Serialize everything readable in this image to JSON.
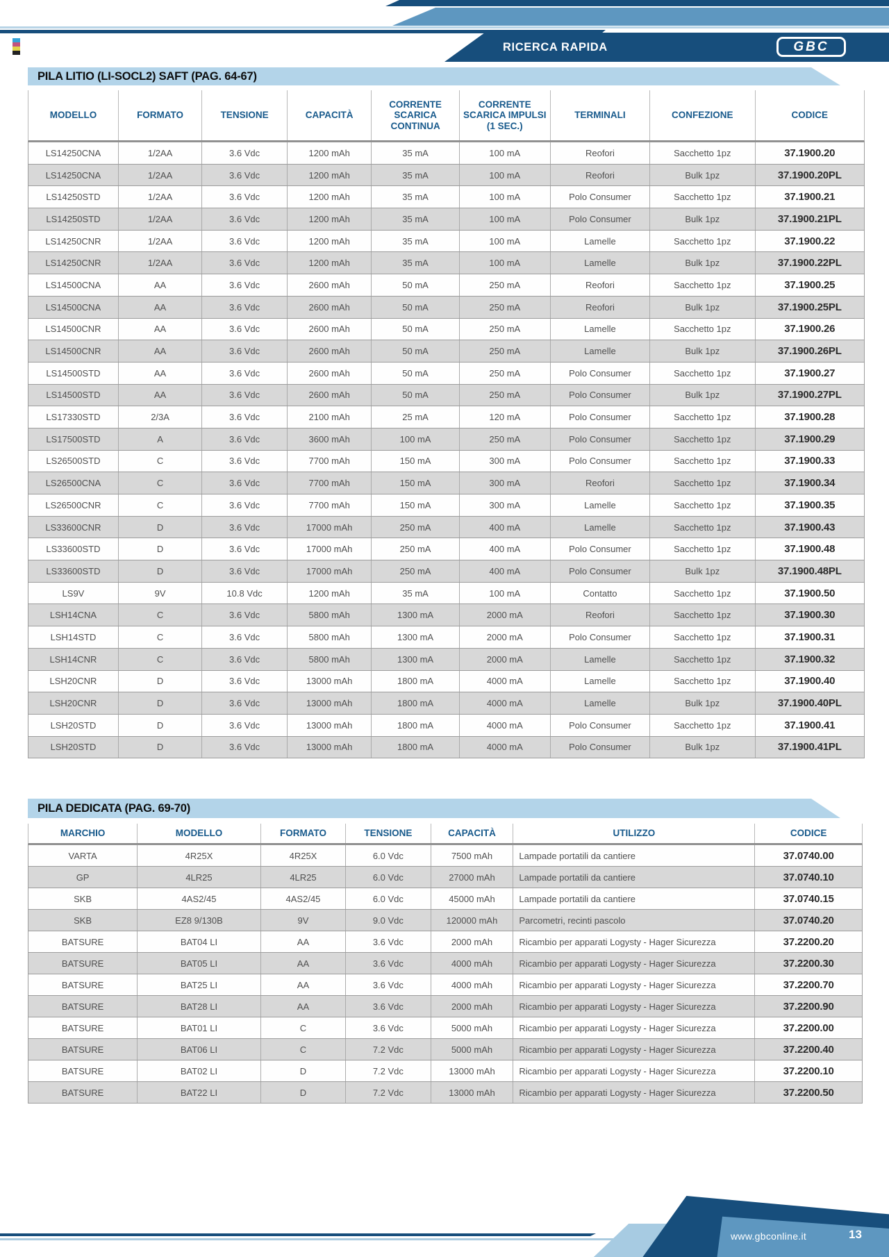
{
  "header": {
    "quick_search_label": "RICERCA RAPIDA",
    "logo_text": "GBC"
  },
  "table1": {
    "title": "PILA LITIO (LI-SOCL2) SAFT (PAG. 64-67)",
    "columns": [
      "MODELLO",
      "FORMATO",
      "TENSIONE",
      "CAPACITÀ",
      "CORRENTE SCARICA CONTINUA",
      "CORRENTE SCARICA IMPULSI (1 SEC.)",
      "TERMINALI",
      "CONFEZIONE",
      "CODICE"
    ],
    "rows": [
      [
        "LS14250CNA",
        "1/2AA",
        "3.6 Vdc",
        "1200 mAh",
        "35 mA",
        "100 mA",
        "Reofori",
        "Sacchetto 1pz",
        "37.1900.20"
      ],
      [
        "LS14250CNA",
        "1/2AA",
        "3.6 Vdc",
        "1200 mAh",
        "35 mA",
        "100 mA",
        "Reofori",
        "Bulk 1pz",
        "37.1900.20PL"
      ],
      [
        "LS14250STD",
        "1/2AA",
        "3.6 Vdc",
        "1200 mAh",
        "35 mA",
        "100 mA",
        "Polo Consumer",
        "Sacchetto 1pz",
        "37.1900.21"
      ],
      [
        "LS14250STD",
        "1/2AA",
        "3.6 Vdc",
        "1200 mAh",
        "35 mA",
        "100 mA",
        "Polo Consumer",
        "Bulk 1pz",
        "37.1900.21PL"
      ],
      [
        "LS14250CNR",
        "1/2AA",
        "3.6 Vdc",
        "1200 mAh",
        "35 mA",
        "100 mA",
        "Lamelle",
        "Sacchetto 1pz",
        "37.1900.22"
      ],
      [
        "LS14250CNR",
        "1/2AA",
        "3.6 Vdc",
        "1200 mAh",
        "35 mA",
        "100 mA",
        "Lamelle",
        "Bulk 1pz",
        "37.1900.22PL"
      ],
      [
        "LS14500CNA",
        "AA",
        "3.6 Vdc",
        "2600 mAh",
        "50 mA",
        "250 mA",
        "Reofori",
        "Sacchetto 1pz",
        "37.1900.25"
      ],
      [
        "LS14500CNA",
        "AA",
        "3.6 Vdc",
        "2600 mAh",
        "50 mA",
        "250 mA",
        "Reofori",
        "Bulk 1pz",
        "37.1900.25PL"
      ],
      [
        "LS14500CNR",
        "AA",
        "3.6 Vdc",
        "2600 mAh",
        "50 mA",
        "250 mA",
        "Lamelle",
        "Sacchetto 1pz",
        "37.1900.26"
      ],
      [
        "LS14500CNR",
        "AA",
        "3.6 Vdc",
        "2600 mAh",
        "50 mA",
        "250 mA",
        "Lamelle",
        "Bulk 1pz",
        "37.1900.26PL"
      ],
      [
        "LS14500STD",
        "AA",
        "3.6 Vdc",
        "2600 mAh",
        "50 mA",
        "250 mA",
        "Polo Consumer",
        "Sacchetto 1pz",
        "37.1900.27"
      ],
      [
        "LS14500STD",
        "AA",
        "3.6 Vdc",
        "2600 mAh",
        "50 mA",
        "250 mA",
        "Polo Consumer",
        "Bulk 1pz",
        "37.1900.27PL"
      ],
      [
        "LS17330STD",
        "2/3A",
        "3.6 Vdc",
        "2100 mAh",
        "25 mA",
        "120 mA",
        "Polo Consumer",
        "Sacchetto 1pz",
        "37.1900.28"
      ],
      [
        "LS17500STD",
        "A",
        "3.6 Vdc",
        "3600 mAh",
        "100 mA",
        "250 mA",
        "Polo Consumer",
        "Sacchetto 1pz",
        "37.1900.29"
      ],
      [
        "LS26500STD",
        "C",
        "3.6 Vdc",
        "7700 mAh",
        "150 mA",
        "300 mA",
        "Polo Consumer",
        "Sacchetto 1pz",
        "37.1900.33"
      ],
      [
        "LS26500CNA",
        "C",
        "3.6 Vdc",
        "7700 mAh",
        "150 mA",
        "300 mA",
        "Reofori",
        "Sacchetto 1pz",
        "37.1900.34"
      ],
      [
        "LS26500CNR",
        "C",
        "3.6 Vdc",
        "7700 mAh",
        "150 mA",
        "300 mA",
        "Lamelle",
        "Sacchetto 1pz",
        "37.1900.35"
      ],
      [
        "LS33600CNR",
        "D",
        "3.6 Vdc",
        "17000 mAh",
        "250 mA",
        "400 mA",
        "Lamelle",
        "Sacchetto 1pz",
        "37.1900.43"
      ],
      [
        "LS33600STD",
        "D",
        "3.6 Vdc",
        "17000 mAh",
        "250 mA",
        "400 mA",
        "Polo Consumer",
        "Sacchetto 1pz",
        "37.1900.48"
      ],
      [
        "LS33600STD",
        "D",
        "3.6 Vdc",
        "17000 mAh",
        "250 mA",
        "400 mA",
        "Polo Consumer",
        "Bulk 1pz",
        "37.1900.48PL"
      ],
      [
        "LS9V",
        "9V",
        "10.8 Vdc",
        "1200 mAh",
        "35 mA",
        "100 mA",
        "Contatto",
        "Sacchetto 1pz",
        "37.1900.50"
      ],
      [
        "LSH14CNA",
        "C",
        "3.6 Vdc",
        "5800 mAh",
        "1300 mA",
        "2000 mA",
        "Reofori",
        "Sacchetto 1pz",
        "37.1900.30"
      ],
      [
        "LSH14STD",
        "C",
        "3.6 Vdc",
        "5800 mAh",
        "1300 mA",
        "2000 mA",
        "Polo Consumer",
        "Sacchetto 1pz",
        "37.1900.31"
      ],
      [
        "LSH14CNR",
        "C",
        "3.6 Vdc",
        "5800 mAh",
        "1300 mA",
        "2000 mA",
        "Lamelle",
        "Sacchetto 1pz",
        "37.1900.32"
      ],
      [
        "LSH20CNR",
        "D",
        "3.6 Vdc",
        "13000 mAh",
        "1800 mA",
        "4000 mA",
        "Lamelle",
        "Sacchetto 1pz",
        "37.1900.40"
      ],
      [
        "LSH20CNR",
        "D",
        "3.6 Vdc",
        "13000 mAh",
        "1800 mA",
        "4000 mA",
        "Lamelle",
        "Bulk 1pz",
        "37.1900.40PL"
      ],
      [
        "LSH20STD",
        "D",
        "3.6 Vdc",
        "13000 mAh",
        "1800 mA",
        "4000 mA",
        "Polo Consumer",
        "Sacchetto 1pz",
        "37.1900.41"
      ],
      [
        "LSH20STD",
        "D",
        "3.6 Vdc",
        "13000 mAh",
        "1800 mA",
        "4000 mA",
        "Polo Consumer",
        "Bulk 1pz",
        "37.1900.41PL"
      ]
    ]
  },
  "table2": {
    "title": "PILA DEDICATA (PAG. 69-70)",
    "columns": [
      "MARCHIO",
      "MODELLO",
      "FORMATO",
      "TENSIONE",
      "CAPACITÀ",
      "UTILIZZO",
      "CODICE"
    ],
    "rows": [
      [
        "VARTA",
        "4R25X",
        "4R25X",
        "6.0 Vdc",
        "7500 mAh",
        "Lampade portatili da cantiere",
        "37.0740.00"
      ],
      [
        "GP",
        "4LR25",
        "4LR25",
        "6.0 Vdc",
        "27000 mAh",
        "Lampade portatili da cantiere",
        "37.0740.10"
      ],
      [
        "SKB",
        "4AS2/45",
        "4AS2/45",
        "6.0 Vdc",
        "45000 mAh",
        "Lampade portatili da cantiere",
        "37.0740.15"
      ],
      [
        "SKB",
        "EZ8 9/130B",
        "9V",
        "9.0 Vdc",
        "120000 mAh",
        "Parcometri, recinti pascolo",
        "37.0740.20"
      ],
      [
        "BATSURE",
        "BAT04 LI",
        "AA",
        "3.6 Vdc",
        "2000 mAh",
        "Ricambio per apparati Logysty - Hager Sicurezza",
        "37.2200.20"
      ],
      [
        "BATSURE",
        "BAT05 LI",
        "AA",
        "3.6 Vdc",
        "4000 mAh",
        "Ricambio per apparati Logysty - Hager Sicurezza",
        "37.2200.30"
      ],
      [
        "BATSURE",
        "BAT25 LI",
        "AA",
        "3.6 Vdc",
        "4000 mAh",
        "Ricambio per apparati Logysty - Hager Sicurezza",
        "37.2200.70"
      ],
      [
        "BATSURE",
        "BAT28 LI",
        "AA",
        "3.6 Vdc",
        "2000 mAh",
        "Ricambio per apparati Logysty - Hager Sicurezza",
        "37.2200.90"
      ],
      [
        "BATSURE",
        "BAT01 LI",
        "C",
        "3.6 Vdc",
        "5000 mAh",
        "Ricambio per apparati Logysty - Hager Sicurezza",
        "37.2200.00"
      ],
      [
        "BATSURE",
        "BAT06 LI",
        "C",
        "7.2 Vdc",
        "5000 mAh",
        "Ricambio per apparati Logysty - Hager Sicurezza",
        "37.2200.40"
      ],
      [
        "BATSURE",
        "BAT02 LI",
        "D",
        "7.2 Vdc",
        "13000 mAh",
        "Ricambio per apparati Logysty - Hager Sicurezza",
        "37.2200.10"
      ],
      [
        "BATSURE",
        "BAT22 LI",
        "D",
        "7.2 Vdc",
        "13000 mAh",
        "Ricambio per apparati Logysty - Hager Sicurezza",
        "37.2200.50"
      ]
    ]
  },
  "footer": {
    "website": "www.gbconline.it",
    "page_number": "13"
  },
  "colors": {
    "navy": "#174e7c",
    "medium_blue": "#5e97c0",
    "light_blue_band": "#b3d4e9",
    "header_text_blue": "#185a8c",
    "row_alt_gray": "#d8d8d8"
  }
}
